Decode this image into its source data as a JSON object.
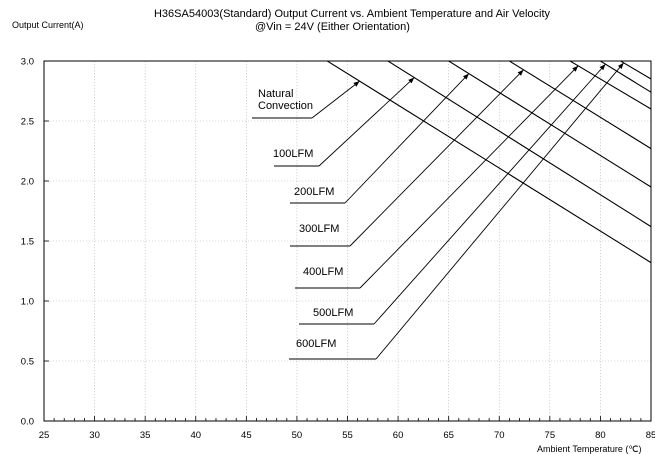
{
  "chart_data": {
    "type": "line",
    "title_line1": "H36SA54003(Standard)  Output Current vs. Ambient Temperature and Air Velocity",
    "title_line2": "@Vin = 24V (Either Orientation)",
    "xlabel": "Ambient Temperature (℃)",
    "ylabel": "Output Current(A)",
    "xlim": [
      25,
      85
    ],
    "ylim": [
      0.0,
      3.0
    ],
    "x_ticks": [
      "25",
      "30",
      "35",
      "40",
      "45",
      "50",
      "55",
      "60",
      "65",
      "70",
      "75",
      "80",
      "85"
    ],
    "y_ticks": [
      "0.0",
      "0.5",
      "1.0",
      "1.5",
      "2.0",
      "2.5",
      "3.0"
    ],
    "grid": true,
    "series": [
      {
        "name": "Natural Convection",
        "x": [
          25,
          53,
          85
        ],
        "y": [
          3.0,
          3.0,
          1.32
        ]
      },
      {
        "name": "100LFM",
        "x": [
          25,
          59,
          85
        ],
        "y": [
          3.0,
          3.0,
          1.62
        ]
      },
      {
        "name": "200LFM",
        "x": [
          25,
          65,
          85
        ],
        "y": [
          3.0,
          3.0,
          1.95
        ]
      },
      {
        "name": "300LFM",
        "x": [
          25,
          71,
          85
        ],
        "y": [
          3.0,
          3.0,
          2.27
        ]
      },
      {
        "name": "400LFM",
        "x": [
          25,
          77,
          85
        ],
        "y": [
          3.0,
          3.0,
          2.6
        ]
      },
      {
        "name": "500LFM",
        "x": [
          25,
          80,
          85
        ],
        "y": [
          3.0,
          3.0,
          2.74
        ]
      },
      {
        "name": "600LFM",
        "x": [
          25,
          82,
          85
        ],
        "y": [
          3.0,
          3.0,
          2.85
        ]
      }
    ],
    "annotations": [
      {
        "label_lines": [
          "Natural",
          "Convection"
        ],
        "series_index": 0
      },
      {
        "label_lines": [
          "100LFM"
        ],
        "series_index": 1
      },
      {
        "label_lines": [
          "200LFM"
        ],
        "series_index": 2
      },
      {
        "label_lines": [
          "300LFM"
        ],
        "series_index": 3
      },
      {
        "label_lines": [
          "400LFM"
        ],
        "series_index": 4
      },
      {
        "label_lines": [
          "500LFM"
        ],
        "series_index": 5
      },
      {
        "label_lines": [
          "600LFM"
        ],
        "series_index": 6
      }
    ]
  }
}
